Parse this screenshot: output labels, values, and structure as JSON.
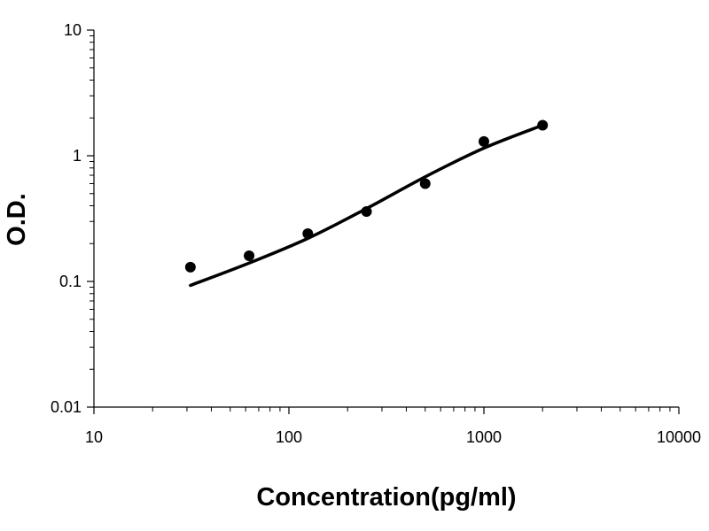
{
  "chart_data": {
    "type": "scatter",
    "xlabel": "Concentration(pg/ml)",
    "ylabel": "O.D.",
    "x_scale": "log",
    "y_scale": "log",
    "xlim": [
      10,
      10000
    ],
    "ylim": [
      0.01,
      10
    ],
    "x_ticks": [
      {
        "value": 10,
        "label": "10"
      },
      {
        "value": 100,
        "label": "100"
      },
      {
        "value": 1000,
        "label": "1000"
      },
      {
        "value": 10000,
        "label": "10000"
      }
    ],
    "y_ticks": [
      {
        "value": 0.01,
        "label": "0.01"
      },
      {
        "value": 0.1,
        "label": "0.1"
      },
      {
        "value": 1,
        "label": "1"
      },
      {
        "value": 10,
        "label": "10"
      }
    ],
    "grid": false,
    "legend": "none",
    "series": [
      {
        "type": "scatter",
        "color": "#000000",
        "points": [
          {
            "x": 31.25,
            "y": 0.13
          },
          {
            "x": 62.5,
            "y": 0.16
          },
          {
            "x": 125,
            "y": 0.24
          },
          {
            "x": 250,
            "y": 0.36
          },
          {
            "x": 500,
            "y": 0.6
          },
          {
            "x": 1000,
            "y": 1.3
          },
          {
            "x": 2000,
            "y": 1.75
          }
        ]
      },
      {
        "type": "line",
        "color": "#000000",
        "points": [
          {
            "x": 31.25,
            "y": 0.093
          },
          {
            "x": 62.5,
            "y": 0.14
          },
          {
            "x": 125,
            "y": 0.22
          },
          {
            "x": 250,
            "y": 0.38
          },
          {
            "x": 500,
            "y": 0.68
          },
          {
            "x": 1000,
            "y": 1.15
          },
          {
            "x": 2000,
            "y": 1.75
          }
        ]
      }
    ]
  }
}
